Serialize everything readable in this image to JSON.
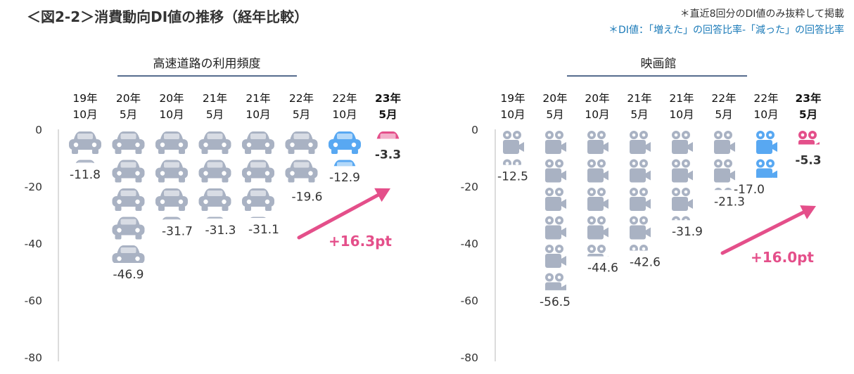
{
  "page": {
    "title": "＜図2-2＞消費動向DI値の推移（経年比較）",
    "note1": "＊直近8回分のDI値のみ抜粋して掲載",
    "note2": "＊DI値：「増えた」の回答比率-「減った」の回答比率"
  },
  "colors": {
    "normal": "#a9b2c3",
    "highlight": "#58a8f2",
    "latest": "#e44f8a",
    "delta": "#e44f8a",
    "title_rule": "#1f3c68"
  },
  "chart_data": [
    {
      "type": "bar",
      "title": "高速道路の利用頻度",
      "icon": "car-icon",
      "categories": [
        [
          "19年",
          "10月"
        ],
        [
          "20年",
          "5月"
        ],
        [
          "20年",
          "10月"
        ],
        [
          "21年",
          "5月"
        ],
        [
          "21年",
          "10月"
        ],
        [
          "22年",
          "5月"
        ],
        [
          "22年",
          "10月"
        ],
        [
          "23年",
          "5月"
        ]
      ],
      "values": [
        -11.8,
        -46.9,
        -31.7,
        -31.3,
        -31.1,
        -19.6,
        -12.9,
        -3.3
      ],
      "value_labels": [
        "-11.8",
        "-46.9",
        "-31.7",
        "-31.3",
        "-31.1",
        "-19.6",
        "-12.9",
        "-3.3"
      ],
      "ylim": [
        -80,
        0
      ],
      "yticks": [
        0,
        -20,
        -40,
        -60,
        -80
      ],
      "ytick_labels": [
        "0",
        "-20",
        "-40",
        "-60",
        "-80"
      ],
      "delta_label": "+16.3pt"
    },
    {
      "type": "bar",
      "title": "映画館",
      "icon": "movie-camera-icon",
      "categories": [
        [
          "19年",
          "10月"
        ],
        [
          "20年",
          "5月"
        ],
        [
          "20年",
          "10月"
        ],
        [
          "21年",
          "5月"
        ],
        [
          "21年",
          "10月"
        ],
        [
          "22年",
          "5月"
        ],
        [
          "22年",
          "10月"
        ],
        [
          "23年",
          "5月"
        ]
      ],
      "values": [
        -12.5,
        -56.5,
        -44.6,
        -42.6,
        -31.9,
        -21.3,
        -17.0,
        -5.3
      ],
      "value_labels": [
        "-12.5",
        "-56.5",
        "-44.6",
        "-42.6",
        "-31.9",
        "-21.3",
        "-17.0",
        "-5.3"
      ],
      "ylim": [
        -80,
        0
      ],
      "yticks": [
        0,
        -20,
        -40,
        -60,
        -80
      ],
      "ytick_labels": [
        "0",
        "-20",
        "-40",
        "-60",
        "-80"
      ],
      "delta_label": "+16.0pt"
    }
  ]
}
